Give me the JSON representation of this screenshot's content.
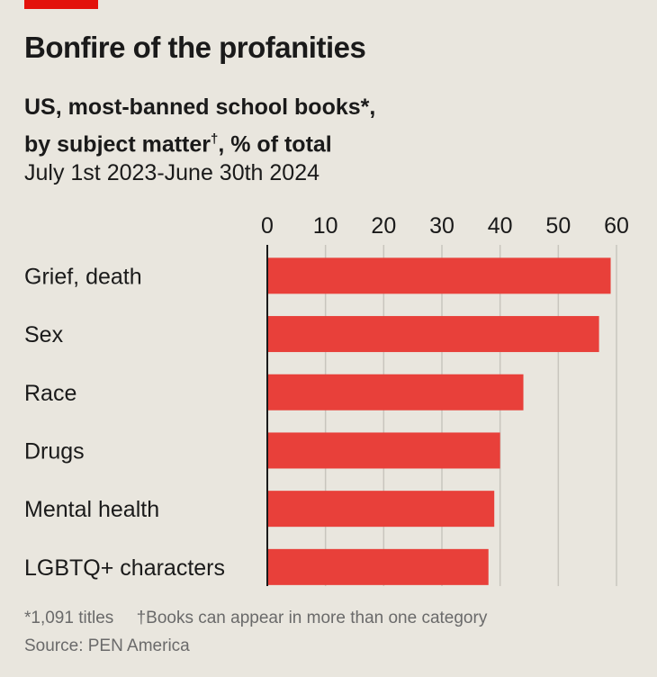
{
  "header": {
    "title": "Bonfire of the profanities",
    "subtitle_line1": "US, most-banned school books*,",
    "subtitle_line2": "by subject matter",
    "subtitle_mark": "†",
    "subtitle_suffix": ", % of total",
    "period": "July 1st 2023-June 30th 2024"
  },
  "footer": {
    "note1": "*1,091 titles",
    "note2": "†Books can appear in more than one category",
    "source": "Source: PEN America"
  },
  "colors": {
    "bar": "#e8403a",
    "accent": "#e3120b",
    "grid": "#c8c5bd",
    "background": "#e9e6de"
  },
  "chart_data": {
    "type": "bar",
    "orientation": "horizontal",
    "categories": [
      "Grief, death",
      "Sex",
      "Race",
      "Drugs",
      "Mental health",
      "LGBTQ+ characters"
    ],
    "values": [
      59,
      57,
      44,
      40,
      39,
      38
    ],
    "xlim": [
      0,
      60
    ],
    "ticks": [
      0,
      10,
      20,
      30,
      40,
      50,
      60
    ],
    "axis_position": "top",
    "grid": true
  }
}
